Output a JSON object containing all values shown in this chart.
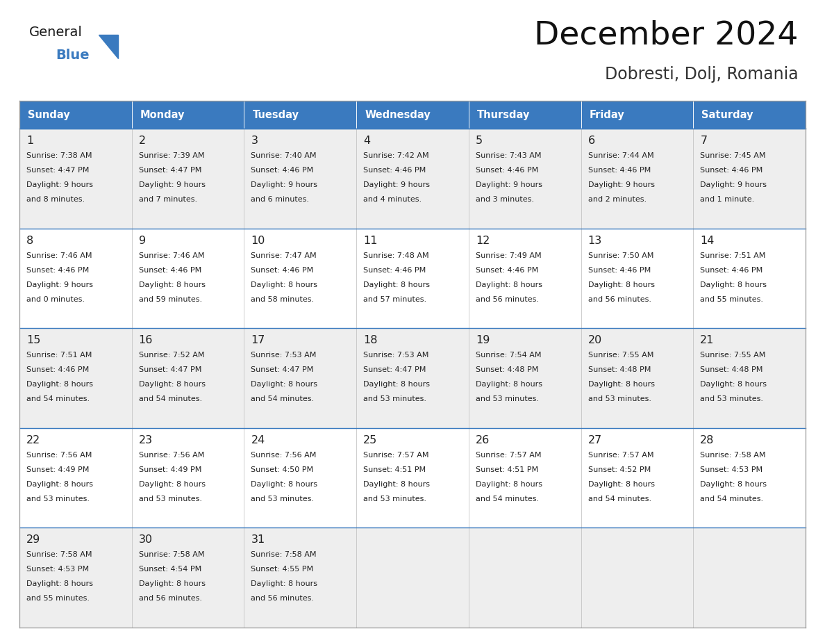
{
  "title": "December 2024",
  "subtitle": "Dobresti, Dolj, Romania",
  "header_bg": "#3a7abf",
  "header_text_color": "#ffffff",
  "cell_bg_odd": "#eeeeee",
  "cell_bg_even": "#ffffff",
  "text_color": "#222222",
  "days_of_week": [
    "Sunday",
    "Monday",
    "Tuesday",
    "Wednesday",
    "Thursday",
    "Friday",
    "Saturday"
  ],
  "weeks": [
    [
      {
        "day": 1,
        "sunrise": "7:38 AM",
        "sunset": "4:47 PM",
        "daylight_line1": "Daylight: 9 hours",
        "daylight_line2": "and 8 minutes."
      },
      {
        "day": 2,
        "sunrise": "7:39 AM",
        "sunset": "4:47 PM",
        "daylight_line1": "Daylight: 9 hours",
        "daylight_line2": "and 7 minutes."
      },
      {
        "day": 3,
        "sunrise": "7:40 AM",
        "sunset": "4:46 PM",
        "daylight_line1": "Daylight: 9 hours",
        "daylight_line2": "and 6 minutes."
      },
      {
        "day": 4,
        "sunrise": "7:42 AM",
        "sunset": "4:46 PM",
        "daylight_line1": "Daylight: 9 hours",
        "daylight_line2": "and 4 minutes."
      },
      {
        "day": 5,
        "sunrise": "7:43 AM",
        "sunset": "4:46 PM",
        "daylight_line1": "Daylight: 9 hours",
        "daylight_line2": "and 3 minutes."
      },
      {
        "day": 6,
        "sunrise": "7:44 AM",
        "sunset": "4:46 PM",
        "daylight_line1": "Daylight: 9 hours",
        "daylight_line2": "and 2 minutes."
      },
      {
        "day": 7,
        "sunrise": "7:45 AM",
        "sunset": "4:46 PM",
        "daylight_line1": "Daylight: 9 hours",
        "daylight_line2": "and 1 minute."
      }
    ],
    [
      {
        "day": 8,
        "sunrise": "7:46 AM",
        "sunset": "4:46 PM",
        "daylight_line1": "Daylight: 9 hours",
        "daylight_line2": "and 0 minutes."
      },
      {
        "day": 9,
        "sunrise": "7:46 AM",
        "sunset": "4:46 PM",
        "daylight_line1": "Daylight: 8 hours",
        "daylight_line2": "and 59 minutes."
      },
      {
        "day": 10,
        "sunrise": "7:47 AM",
        "sunset": "4:46 PM",
        "daylight_line1": "Daylight: 8 hours",
        "daylight_line2": "and 58 minutes."
      },
      {
        "day": 11,
        "sunrise": "7:48 AM",
        "sunset": "4:46 PM",
        "daylight_line1": "Daylight: 8 hours",
        "daylight_line2": "and 57 minutes."
      },
      {
        "day": 12,
        "sunrise": "7:49 AM",
        "sunset": "4:46 PM",
        "daylight_line1": "Daylight: 8 hours",
        "daylight_line2": "and 56 minutes."
      },
      {
        "day": 13,
        "sunrise": "7:50 AM",
        "sunset": "4:46 PM",
        "daylight_line1": "Daylight: 8 hours",
        "daylight_line2": "and 56 minutes."
      },
      {
        "day": 14,
        "sunrise": "7:51 AM",
        "sunset": "4:46 PM",
        "daylight_line1": "Daylight: 8 hours",
        "daylight_line2": "and 55 minutes."
      }
    ],
    [
      {
        "day": 15,
        "sunrise": "7:51 AM",
        "sunset": "4:46 PM",
        "daylight_line1": "Daylight: 8 hours",
        "daylight_line2": "and 54 minutes."
      },
      {
        "day": 16,
        "sunrise": "7:52 AM",
        "sunset": "4:47 PM",
        "daylight_line1": "Daylight: 8 hours",
        "daylight_line2": "and 54 minutes."
      },
      {
        "day": 17,
        "sunrise": "7:53 AM",
        "sunset": "4:47 PM",
        "daylight_line1": "Daylight: 8 hours",
        "daylight_line2": "and 54 minutes."
      },
      {
        "day": 18,
        "sunrise": "7:53 AM",
        "sunset": "4:47 PM",
        "daylight_line1": "Daylight: 8 hours",
        "daylight_line2": "and 53 minutes."
      },
      {
        "day": 19,
        "sunrise": "7:54 AM",
        "sunset": "4:48 PM",
        "daylight_line1": "Daylight: 8 hours",
        "daylight_line2": "and 53 minutes."
      },
      {
        "day": 20,
        "sunrise": "7:55 AM",
        "sunset": "4:48 PM",
        "daylight_line1": "Daylight: 8 hours",
        "daylight_line2": "and 53 minutes."
      },
      {
        "day": 21,
        "sunrise": "7:55 AM",
        "sunset": "4:48 PM",
        "daylight_line1": "Daylight: 8 hours",
        "daylight_line2": "and 53 minutes."
      }
    ],
    [
      {
        "day": 22,
        "sunrise": "7:56 AM",
        "sunset": "4:49 PM",
        "daylight_line1": "Daylight: 8 hours",
        "daylight_line2": "and 53 minutes."
      },
      {
        "day": 23,
        "sunrise": "7:56 AM",
        "sunset": "4:49 PM",
        "daylight_line1": "Daylight: 8 hours",
        "daylight_line2": "and 53 minutes."
      },
      {
        "day": 24,
        "sunrise": "7:56 AM",
        "sunset": "4:50 PM",
        "daylight_line1": "Daylight: 8 hours",
        "daylight_line2": "and 53 minutes."
      },
      {
        "day": 25,
        "sunrise": "7:57 AM",
        "sunset": "4:51 PM",
        "daylight_line1": "Daylight: 8 hours",
        "daylight_line2": "and 53 minutes."
      },
      {
        "day": 26,
        "sunrise": "7:57 AM",
        "sunset": "4:51 PM",
        "daylight_line1": "Daylight: 8 hours",
        "daylight_line2": "and 54 minutes."
      },
      {
        "day": 27,
        "sunrise": "7:57 AM",
        "sunset": "4:52 PM",
        "daylight_line1": "Daylight: 8 hours",
        "daylight_line2": "and 54 minutes."
      },
      {
        "day": 28,
        "sunrise": "7:58 AM",
        "sunset": "4:53 PM",
        "daylight_line1": "Daylight: 8 hours",
        "daylight_line2": "and 54 minutes."
      }
    ],
    [
      {
        "day": 29,
        "sunrise": "7:58 AM",
        "sunset": "4:53 PM",
        "daylight_line1": "Daylight: 8 hours",
        "daylight_line2": "and 55 minutes."
      },
      {
        "day": 30,
        "sunrise": "7:58 AM",
        "sunset": "4:54 PM",
        "daylight_line1": "Daylight: 8 hours",
        "daylight_line2": "and 56 minutes."
      },
      {
        "day": 31,
        "sunrise": "7:58 AM",
        "sunset": "4:55 PM",
        "daylight_line1": "Daylight: 8 hours",
        "daylight_line2": "and 56 minutes."
      },
      null,
      null,
      null,
      null
    ]
  ],
  "logo_text1": "General",
  "logo_text2": "Blue",
  "logo_triangle_color": "#3a7abf",
  "logo_text1_color": "#1a1a1a"
}
